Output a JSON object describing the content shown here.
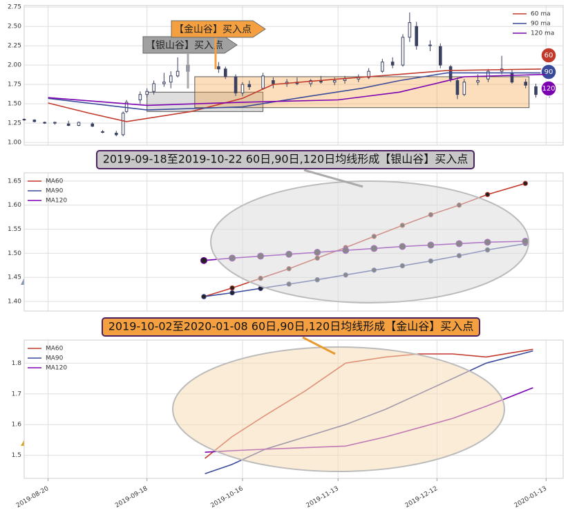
{
  "chart_data": [
    {
      "type": "candlestick",
      "x": [
        "2019-08-13",
        "2019-08-16",
        "2019-08-19",
        "2019-08-22",
        "2019-08-26",
        "2019-08-29",
        "2019-09-02",
        "2019-09-05",
        "2019-09-09",
        "2019-09-11",
        "2019-09-12",
        "2019-09-16",
        "2019-09-18",
        "2019-09-20",
        "2019-09-23",
        "2019-09-25",
        "2019-09-27",
        "2019-09-30",
        "2019-10-09",
        "2019-10-11",
        "2019-10-14",
        "2019-10-16",
        "2019-10-18",
        "2019-10-22",
        "2019-10-25",
        "2019-10-29",
        "2019-11-01",
        "2019-11-05",
        "2019-11-08",
        "2019-11-12",
        "2019-11-15",
        "2019-11-19",
        "2019-11-22",
        "2019-11-26",
        "2019-11-29",
        "2019-12-02",
        "2019-12-04",
        "2019-12-06",
        "2019-12-10",
        "2019-12-13",
        "2019-12-16",
        "2019-12-18",
        "2019-12-20",
        "2019-12-24",
        "2019-12-27",
        "2019-12-31",
        "2020-01-03",
        "2020-01-07",
        "2020-01-10",
        "2020-01-14"
      ],
      "open": [
        1.3,
        1.29,
        1.26,
        1.25,
        1.24,
        1.22,
        1.24,
        1.14,
        1.12,
        1.1,
        1.4,
        1.55,
        1.62,
        1.66,
        1.76,
        1.78,
        1.86,
        1.92,
        1.98,
        1.95,
        1.85,
        1.64,
        1.75,
        1.7,
        1.8,
        1.76,
        1.78,
        1.76,
        1.8,
        1.78,
        1.8,
        1.82,
        1.84,
        1.92,
        2.04,
        2.0,
        2.36,
        2.5,
        2.25,
        2.24,
        1.98,
        1.8,
        1.62,
        1.78,
        1.82,
        1.92,
        1.9,
        1.78,
        1.72,
        1.62
      ],
      "high": [
        1.31,
        1.3,
        1.27,
        1.27,
        1.28,
        1.27,
        1.26,
        1.16,
        1.15,
        1.4,
        1.55,
        1.66,
        1.7,
        1.8,
        1.9,
        1.92,
        2.1,
        2.05,
        2.04,
        1.98,
        1.88,
        1.78,
        1.8,
        1.9,
        1.84,
        1.82,
        1.84,
        1.82,
        1.86,
        1.84,
        1.86,
        1.88,
        1.96,
        2.08,
        2.1,
        2.4,
        2.68,
        2.56,
        2.32,
        2.28,
        2.0,
        1.84,
        1.82,
        1.88,
        1.95,
        2.12,
        1.94,
        1.82,
        1.76,
        1.72
      ],
      "low": [
        1.28,
        1.26,
        1.24,
        1.23,
        1.21,
        1.21,
        1.2,
        1.12,
        1.08,
        1.08,
        1.38,
        1.5,
        1.58,
        1.62,
        1.72,
        1.7,
        1.84,
        1.88,
        1.9,
        1.82,
        1.6,
        1.6,
        1.68,
        1.68,
        1.7,
        1.72,
        1.74,
        1.72,
        1.76,
        1.74,
        1.76,
        1.78,
        1.82,
        1.9,
        1.96,
        1.98,
        2.3,
        2.2,
        2.18,
        1.96,
        1.78,
        1.56,
        1.6,
        1.74,
        1.78,
        1.88,
        1.76,
        1.7,
        1.58,
        1.58
      ],
      "close": [
        1.29,
        1.27,
        1.25,
        1.26,
        1.22,
        1.26,
        1.21,
        1.13,
        1.1,
        1.38,
        1.52,
        1.62,
        1.66,
        1.76,
        1.78,
        1.86,
        1.92,
        2.0,
        1.95,
        1.85,
        1.64,
        1.75,
        1.72,
        1.86,
        1.76,
        1.78,
        1.76,
        1.8,
        1.78,
        1.8,
        1.82,
        1.84,
        1.92,
        2.04,
        2.0,
        2.36,
        2.55,
        2.25,
        2.26,
        2.0,
        1.82,
        1.62,
        1.78,
        1.8,
        1.92,
        1.95,
        1.78,
        1.74,
        1.62,
        1.68
      ],
      "candle_color": "#3a4060",
      "series": [
        {
          "name": "60 ma",
          "badge": "60",
          "color": "#c0392b",
          "x": [
            "2019-08-20",
            "2019-09-01",
            "2019-09-12",
            "2019-10-01",
            "2019-10-16",
            "2019-10-25",
            "2019-11-13",
            "2019-12-01",
            "2019-12-15",
            "2020-01-13"
          ],
          "values": [
            1.51,
            1.38,
            1.27,
            1.4,
            1.57,
            1.75,
            1.82,
            1.88,
            1.93,
            1.95
          ]
        },
        {
          "name": "90 ma",
          "badge": "90",
          "color": "#3a4a9a",
          "x": [
            "2019-08-20",
            "2019-09-18",
            "2019-10-16",
            "2019-11-05",
            "2019-11-20",
            "2019-12-01",
            "2019-12-15",
            "2020-01-13"
          ],
          "values": [
            1.57,
            1.42,
            1.46,
            1.6,
            1.7,
            1.8,
            1.9,
            1.9
          ]
        },
        {
          "name": "120 ma",
          "badge": "120",
          "color": "#7b00b0",
          "x": [
            "2019-08-20",
            "2019-09-18",
            "2019-10-16",
            "2019-11-13",
            "2019-12-01",
            "2019-12-20",
            "2020-01-13"
          ],
          "values": [
            1.58,
            1.48,
            1.52,
            1.55,
            1.65,
            1.85,
            1.88
          ]
        }
      ],
      "regions": [
        {
          "label": "【银山谷】买入点",
          "x": [
            "2019-09-18",
            "2019-10-22"
          ],
          "y": [
            1.4,
            1.65
          ],
          "color": "#a0a0a0"
        },
        {
          "label": "【金山谷】买入点",
          "x": [
            "2019-10-02",
            "2020-01-08"
          ],
          "y": [
            1.45,
            1.85
          ],
          "color": "#f5a040"
        }
      ],
      "xlim": [
        "2019-08-13",
        "2020-01-18"
      ],
      "xticks": [
        "2019-08-20",
        "2019-09-18",
        "2019-10-16",
        "2019-11-13",
        "2019-12-12",
        "2020-01-13"
      ],
      "ylim": [
        0.965,
        2.77
      ],
      "yticks": [
        {
          "value": 1,
          "label": "1.00"
        },
        1.25,
        {
          "value": 1.5,
          "label": "1.50"
        },
        1.75,
        {
          "value": 2,
          "label": "2.00"
        },
        2.25,
        {
          "value": 2.5,
          "label": "2.50"
        },
        2.75
      ],
      "grid": true,
      "legend": "upper right"
    },
    {
      "type": "line",
      "banner": "2019-09-18至2019-10-22 60日,90日,120日均线形成【银山谷】买入点",
      "banner_color": "#c8c8c8",
      "x": [
        "2019-09-18",
        "2019-09-21",
        "2019-09-24",
        "2019-09-27",
        "2019-09-30",
        "2019-10-03",
        "2019-10-06",
        "2019-10-09",
        "2019-10-12",
        "2019-10-15",
        "2019-10-18",
        "2019-10-22"
      ],
      "series": [
        {
          "name": "MA60",
          "color": "#c0392b",
          "values": [
            1.41,
            1.428,
            1.448,
            1.468,
            1.49,
            1.512,
            1.535,
            1.558,
            1.58,
            1.6,
            1.622,
            1.645
          ]
        },
        {
          "name": "MA90",
          "color": "#3a4a9a",
          "values": [
            1.41,
            1.418,
            1.427,
            1.436,
            1.445,
            1.455,
            1.465,
            1.474,
            1.484,
            1.495,
            1.507,
            1.52
          ]
        },
        {
          "name": "MA120",
          "color": "#7b00b0",
          "values": [
            1.485,
            1.49,
            1.494,
            1.498,
            1.502,
            1.506,
            1.51,
            1.514,
            1.517,
            1.52,
            1.523,
            1.525
          ]
        }
      ],
      "xlim": [
        "2019-08-30",
        "2019-10-26"
      ],
      "ylim": [
        1.38,
        1.667
      ],
      "yticks": [
        {
          "value": 1.4,
          "label": "1.40"
        },
        1.45,
        {
          "value": 1.5,
          "label": "1.50"
        },
        1.55,
        {
          "value": 1.6,
          "label": "1.60"
        },
        1.65
      ],
      "markers": true,
      "grid": true,
      "legend": "upper left"
    },
    {
      "type": "line",
      "banner": "2019-10-02至2020-01-08 60日,90日,120日均线形成【金山谷】买入点",
      "banner_color": "#f5a040",
      "x": [
        "2019-10-02",
        "2019-10-10",
        "2019-10-20",
        "2019-11-01",
        "2019-11-13",
        "2019-11-25",
        "2019-12-05",
        "2019-12-15",
        "2019-12-25",
        "2020-01-08"
      ],
      "series": [
        {
          "name": "MA60",
          "color": "#c0392b",
          "values": [
            1.49,
            1.56,
            1.63,
            1.71,
            1.8,
            1.82,
            1.83,
            1.83,
            1.82,
            1.845
          ]
        },
        {
          "name": "MA90",
          "color": "#3a4a9a",
          "values": [
            1.44,
            1.47,
            1.52,
            1.56,
            1.6,
            1.65,
            1.7,
            1.75,
            1.8,
            1.84
          ]
        },
        {
          "name": "MA120",
          "color": "#7b00b0",
          "values": [
            1.51,
            1.515,
            1.52,
            1.525,
            1.53,
            1.56,
            1.59,
            1.62,
            1.66,
            1.72
          ]
        }
      ],
      "xlim": [
        "2019-08-09",
        "2020-01-17"
      ],
      "ylim": [
        1.425,
        1.875
      ],
      "yticks": [
        {
          "value": 1.5,
          "label": "1.5"
        },
        {
          "value": 1.6,
          "label": "1.6"
        },
        {
          "value": 1.7,
          "label": "1.7"
        },
        {
          "value": 1.8,
          "label": "1.8"
        }
      ],
      "markers": false,
      "grid": true,
      "legend": "upper left"
    }
  ]
}
